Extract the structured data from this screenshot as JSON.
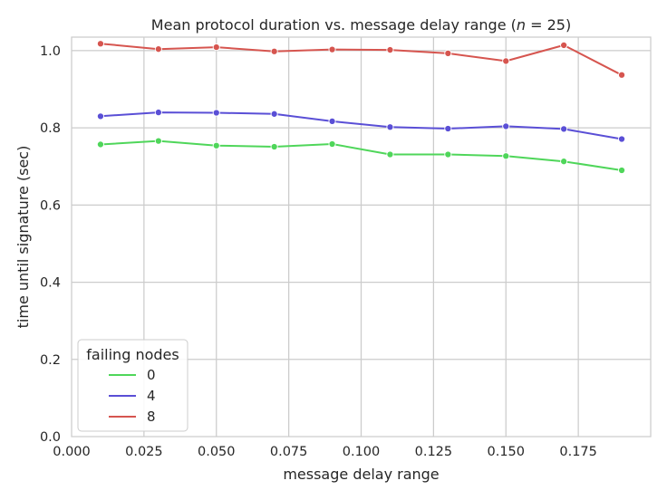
{
  "chart_data": {
    "type": "line",
    "title_prefix": "Mean protocol duration vs. message delay range (",
    "title_var": "n",
    "title_suffix": " = 25)",
    "xlabel": "message delay range",
    "ylabel": "time until signature (sec)",
    "xlim": [
      0.0,
      0.2
    ],
    "ylim": [
      0.0,
      1.035
    ],
    "x_ticks": [
      "0.000",
      "0.025",
      "0.050",
      "0.075",
      "0.100",
      "0.125",
      "0.150",
      "0.175"
    ],
    "y_ticks": [
      "0.0",
      "0.2",
      "0.4",
      "0.6",
      "0.8",
      "1.0"
    ],
    "grid": true,
    "legend_title": "failing nodes",
    "legend_position": "lower-left",
    "x": [
      0.01,
      0.03,
      0.05,
      0.07,
      0.09,
      0.11,
      0.13,
      0.15,
      0.17,
      0.19
    ],
    "series": [
      {
        "name": "0",
        "color": "#4fd65a",
        "values": [
          0.757,
          0.766,
          0.754,
          0.751,
          0.758,
          0.731,
          0.731,
          0.727,
          0.713,
          0.69
        ]
      },
      {
        "name": "4",
        "color": "#5a4fd6",
        "values": [
          0.83,
          0.84,
          0.839,
          0.836,
          0.817,
          0.802,
          0.798,
          0.804,
          0.797,
          0.771
        ]
      },
      {
        "name": "8",
        "color": "#d6554f",
        "values": [
          1.018,
          1.004,
          1.009,
          0.998,
          1.003,
          1.002,
          0.993,
          0.973,
          1.014,
          0.937
        ]
      }
    ]
  }
}
